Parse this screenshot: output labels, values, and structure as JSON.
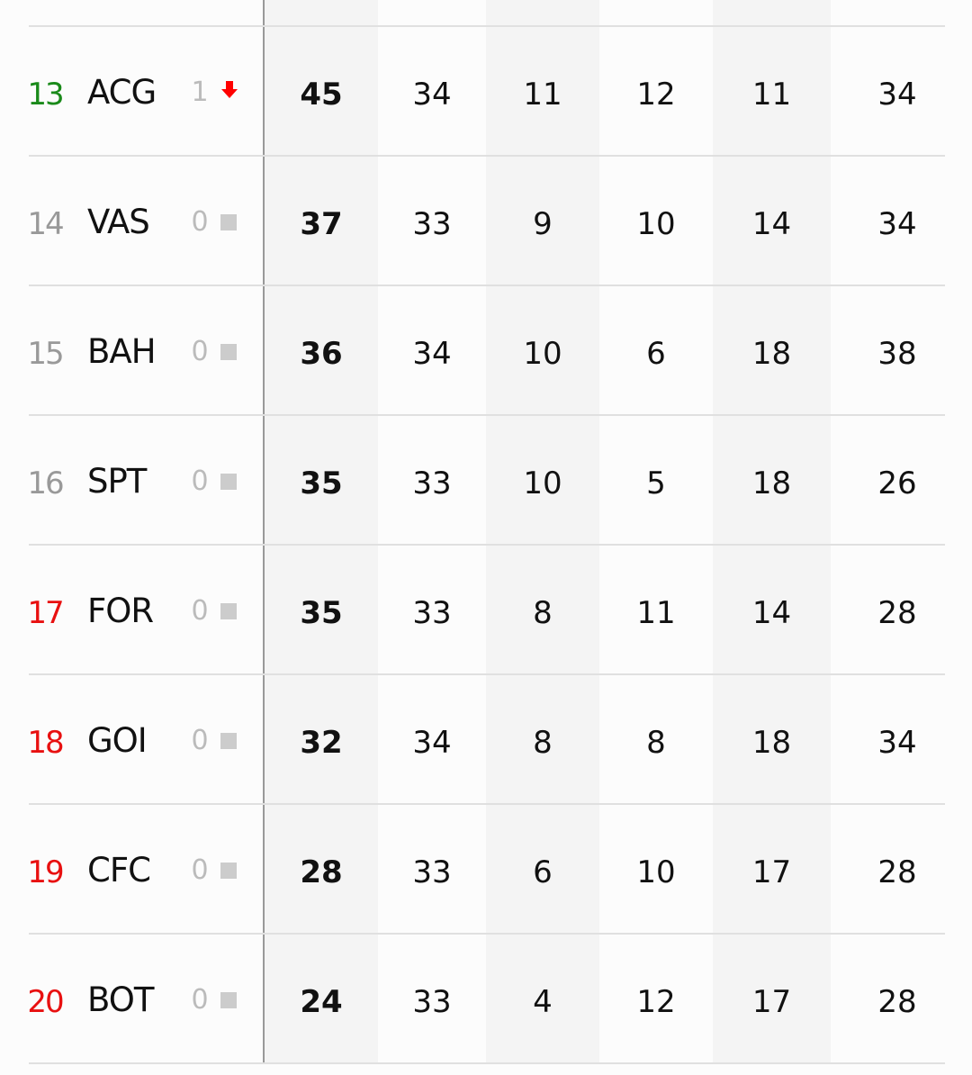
{
  "colors": {
    "promo": "#1a8a1a",
    "neutral": "#999999",
    "relegation": "#e81010",
    "down_arrow": "#ff0000",
    "same_square": "#cccccc"
  },
  "rows": [
    {
      "pos": "13",
      "pos_status": "promo",
      "team": "ACG",
      "change": "1",
      "change_icon": "arrow-down",
      "pts": "45",
      "gp": "34",
      "w": "11",
      "d": "12",
      "l": "11",
      "x": "34"
    },
    {
      "pos": "14",
      "pos_status": "neutral",
      "team": "VAS",
      "change": "0",
      "change_icon": "square",
      "pts": "37",
      "gp": "33",
      "w": "9",
      "d": "10",
      "l": "14",
      "x": "34"
    },
    {
      "pos": "15",
      "pos_status": "neutral",
      "team": "BAH",
      "change": "0",
      "change_icon": "square",
      "pts": "36",
      "gp": "34",
      "w": "10",
      "d": "6",
      "l": "18",
      "x": "38"
    },
    {
      "pos": "16",
      "pos_status": "neutral",
      "team": "SPT",
      "change": "0",
      "change_icon": "square",
      "pts": "35",
      "gp": "33",
      "w": "10",
      "d": "5",
      "l": "18",
      "x": "26"
    },
    {
      "pos": "17",
      "pos_status": "relegation",
      "team": "FOR",
      "change": "0",
      "change_icon": "square",
      "pts": "35",
      "gp": "33",
      "w": "8",
      "d": "11",
      "l": "14",
      "x": "28"
    },
    {
      "pos": "18",
      "pos_status": "relegation",
      "team": "GOI",
      "change": "0",
      "change_icon": "square",
      "pts": "32",
      "gp": "34",
      "w": "8",
      "d": "8",
      "l": "18",
      "x": "34"
    },
    {
      "pos": "19",
      "pos_status": "relegation",
      "team": "CFC",
      "change": "0",
      "change_icon": "square",
      "pts": "28",
      "gp": "33",
      "w": "6",
      "d": "10",
      "l": "17",
      "x": "28"
    },
    {
      "pos": "20",
      "pos_status": "relegation",
      "team": "BOT",
      "change": "0",
      "change_icon": "square",
      "pts": "24",
      "gp": "33",
      "w": "4",
      "d": "12",
      "l": "17",
      "x": "28"
    }
  ]
}
